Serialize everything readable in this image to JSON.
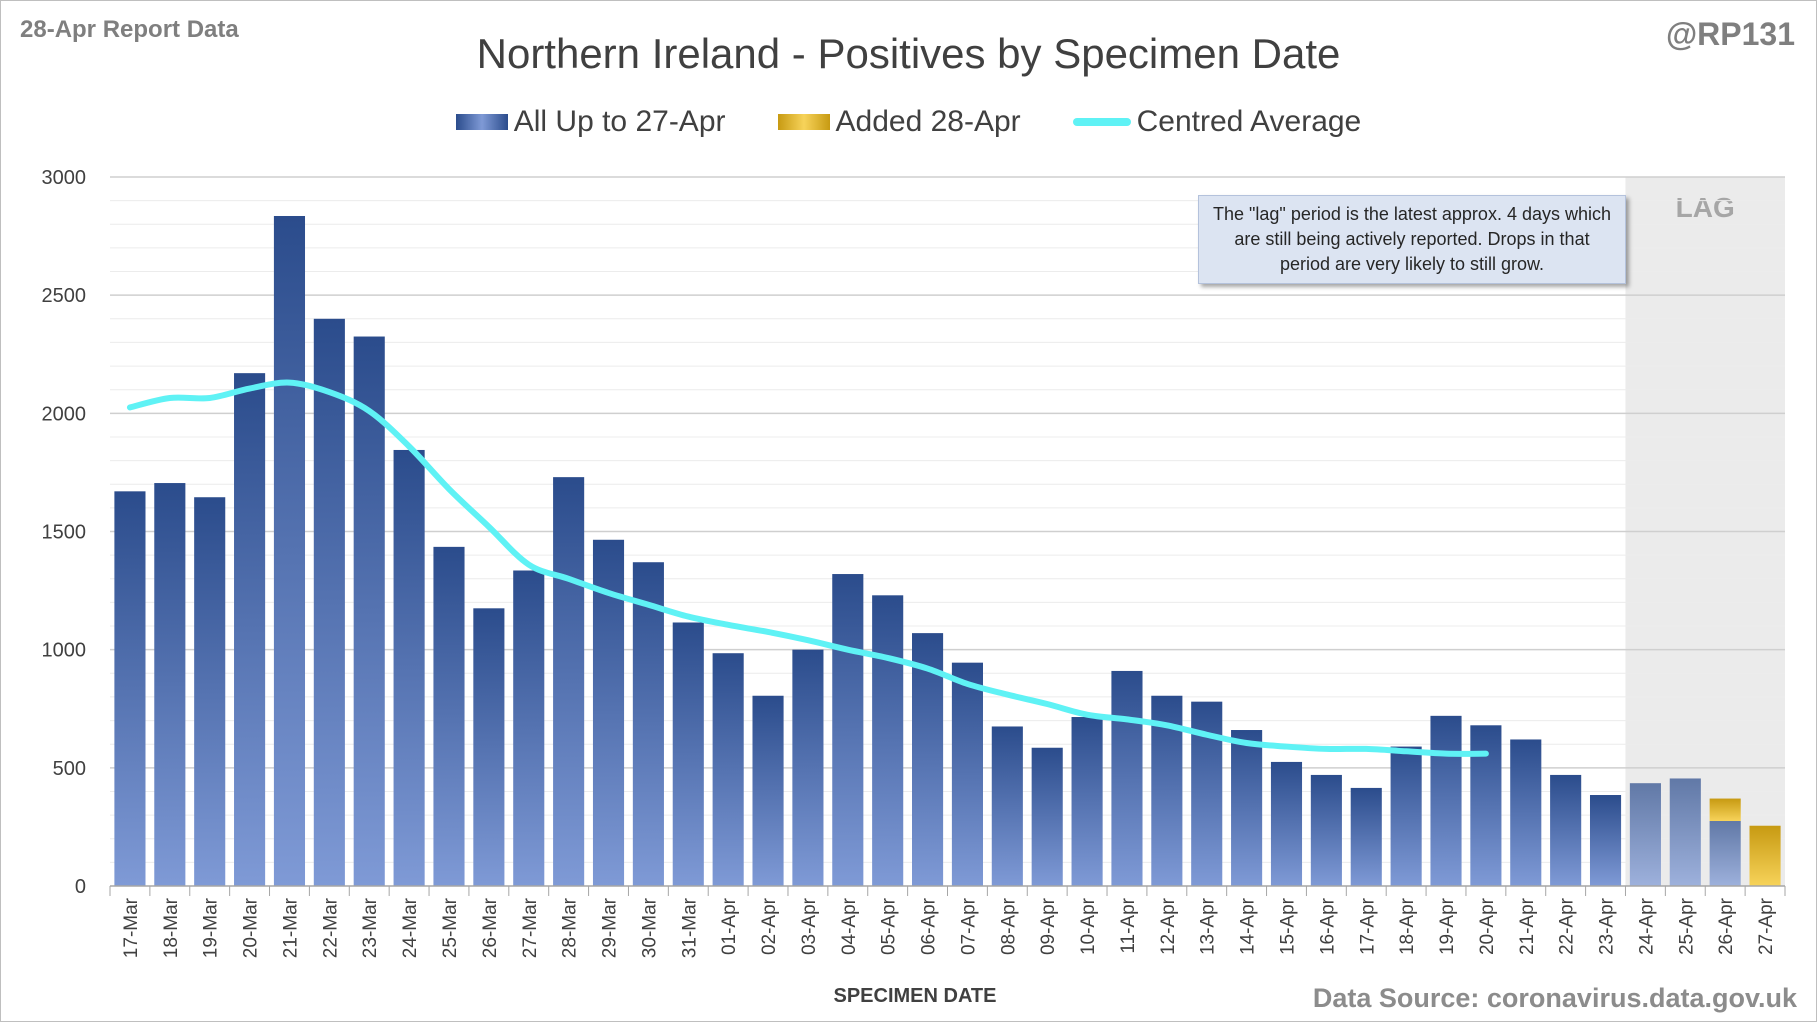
{
  "header": {
    "report_tag": "28-Apr Report Data",
    "handle": "@RP131"
  },
  "footer": {
    "source": "Data Source: coronavirus.data.gov.uk"
  },
  "annotation": "The \"lag\" period is the latest approx. 4 days which are still being actively reported. Drops in that period are very likely to still grow.",
  "lag_label": "LAG",
  "colors": {
    "bar_top": "#2b4c8c",
    "bar_bottom": "#7f9ad6",
    "added_top": "#c79a12",
    "added_bottom": "#f7d35a",
    "average_line": "#5ff2f5",
    "lag_shade": "#ebebeb",
    "grid": "#d9d9d9"
  },
  "chart_data": {
    "type": "bar",
    "title": "Northern Ireland - Positives by Specimen Date",
    "xlabel": "SPECIMEN DATE",
    "ylabel": "",
    "ylim": [
      0,
      3000
    ],
    "yticks": [
      0,
      500,
      1000,
      1500,
      2000,
      2500,
      3000
    ],
    "stacked": true,
    "grid": true,
    "legend_position": "top-center",
    "categories": [
      "17-Mar",
      "18-Mar",
      "19-Mar",
      "20-Mar",
      "21-Mar",
      "22-Mar",
      "23-Mar",
      "24-Mar",
      "25-Mar",
      "26-Mar",
      "27-Mar",
      "28-Mar",
      "29-Mar",
      "30-Mar",
      "31-Mar",
      "01-Apr",
      "02-Apr",
      "03-Apr",
      "04-Apr",
      "05-Apr",
      "06-Apr",
      "07-Apr",
      "08-Apr",
      "09-Apr",
      "10-Apr",
      "11-Apr",
      "12-Apr",
      "13-Apr",
      "14-Apr",
      "15-Apr",
      "16-Apr",
      "17-Apr",
      "18-Apr",
      "19-Apr",
      "20-Apr",
      "21-Apr",
      "22-Apr",
      "23-Apr",
      "24-Apr",
      "25-Apr",
      "26-Apr",
      "27-Apr"
    ],
    "lag_categories": [
      "24-Apr",
      "25-Apr",
      "26-Apr",
      "27-Apr"
    ],
    "series": [
      {
        "name": "All Up to 27-Apr",
        "kind": "bar",
        "values": [
          1670,
          1705,
          1645,
          2170,
          2835,
          2400,
          2325,
          1845,
          1435,
          1175,
          1335,
          1730,
          1465,
          1370,
          1115,
          985,
          805,
          1000,
          1320,
          1230,
          1070,
          945,
          675,
          585,
          715,
          910,
          805,
          780,
          660,
          525,
          470,
          415,
          590,
          720,
          680,
          620,
          470,
          385,
          435,
          455,
          275,
          0
        ]
      },
      {
        "name": "Added 28-Apr",
        "kind": "bar",
        "values": [
          0,
          0,
          0,
          0,
          0,
          0,
          0,
          0,
          0,
          0,
          0,
          0,
          0,
          0,
          0,
          0,
          0,
          0,
          0,
          0,
          0,
          0,
          0,
          0,
          0,
          0,
          0,
          0,
          0,
          0,
          0,
          0,
          0,
          0,
          0,
          0,
          0,
          0,
          0,
          0,
          95,
          255
        ]
      },
      {
        "name": "Centred Average",
        "kind": "line",
        "values": [
          2025,
          2065,
          2065,
          2105,
          2130,
          2090,
          2010,
          1860,
          1680,
          1520,
          1360,
          1300,
          1240,
          1190,
          1140,
          1105,
          1075,
          1040,
          1000,
          965,
          920,
          855,
          810,
          770,
          725,
          705,
          680,
          640,
          605,
          590,
          580,
          580,
          570,
          560,
          560,
          null,
          null,
          null,
          null,
          null,
          null,
          null
        ]
      }
    ]
  }
}
